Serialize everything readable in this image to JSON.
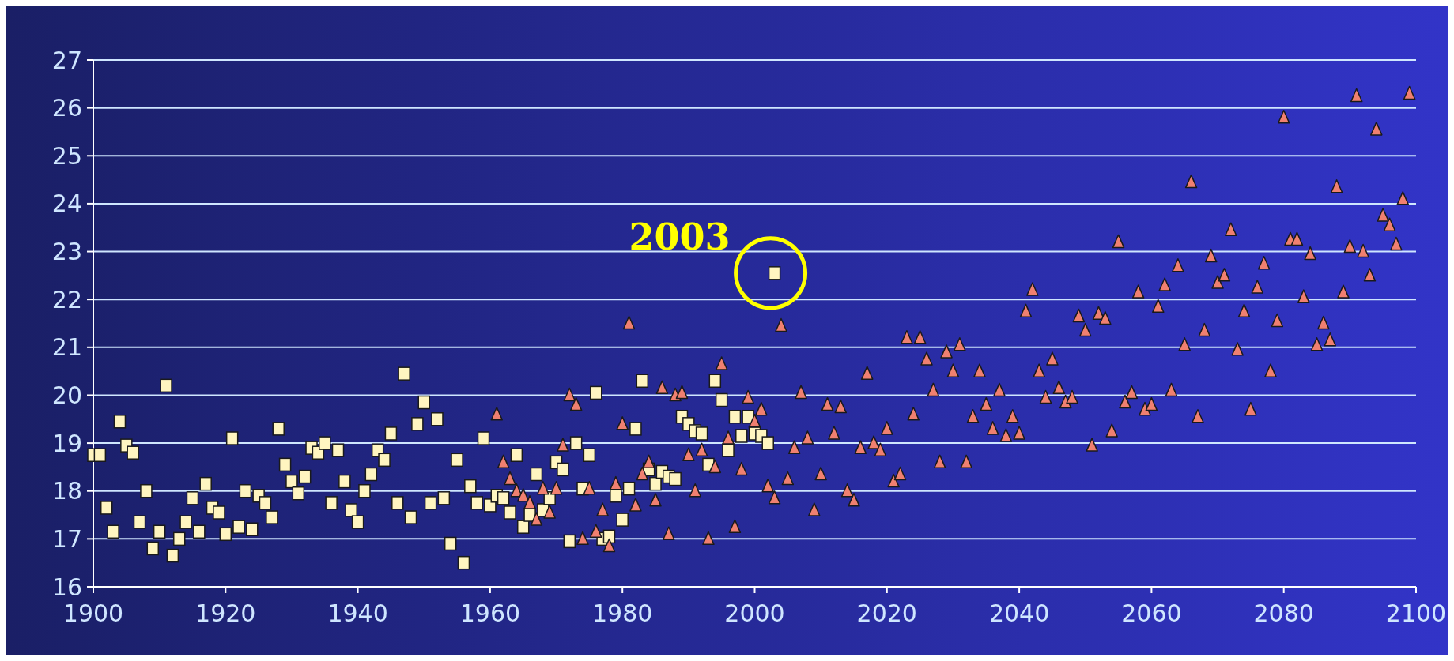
{
  "chart_data": {
    "type": "scatter",
    "xlim": [
      1900,
      2100
    ],
    "xticks": [
      1900,
      1920,
      1940,
      1960,
      1980,
      2000,
      2020,
      2040,
      2060,
      2080,
      2100
    ],
    "ylim": [
      16,
      27
    ],
    "yticks": [
      16,
      17,
      18,
      19,
      20,
      21,
      22,
      23,
      24,
      25,
      26,
      27
    ],
    "grid": "y",
    "annotations": [
      {
        "text": "2003",
        "x": 2003,
        "y": 22.55
      }
    ],
    "series": [
      {
        "color": "#fff5c0",
        "marker": "square",
        "x": [
          1900,
          1901,
          1902,
          1903,
          1904,
          1905,
          1906,
          1907,
          1908,
          1909,
          1910,
          1911,
          1912,
          1913,
          1914,
          1915,
          1916,
          1917,
          1918,
          1919,
          1920,
          1921,
          1922,
          1923,
          1924,
          1925,
          1926,
          1927,
          1928,
          1929,
          1930,
          1931,
          1932,
          1933,
          1934,
          1935,
          1936,
          1937,
          1938,
          1939,
          1940,
          1941,
          1942,
          1943,
          1944,
          1945,
          1946,
          1947,
          1948,
          1949,
          1950,
          1951,
          1952,
          1953,
          1954,
          1955,
          1956,
          1957,
          1958,
          1959,
          1960,
          1961,
          1962,
          1963,
          1964,
          1965,
          1966,
          1967,
          1968,
          1969,
          1970,
          1971,
          1972,
          1973,
          1974,
          1975,
          1976,
          1977,
          1978,
          1979,
          1980,
          1981,
          1982,
          1983,
          1984,
          1985,
          1986,
          1987,
          1988,
          1989,
          1990,
          1991,
          1992,
          1993,
          1994,
          1995,
          1996,
          1997,
          1998,
          1999,
          2000,
          2001,
          2002,
          2003
        ],
        "values": [
          18.75,
          18.75,
          17.65,
          17.15,
          19.45,
          18.95,
          18.8,
          17.35,
          18.0,
          16.8,
          17.15,
          20.2,
          16.65,
          17.0,
          17.35,
          17.85,
          17.15,
          18.15,
          17.65,
          17.55,
          17.1,
          19.1,
          17.25,
          18.0,
          17.2,
          17.9,
          17.75,
          17.45,
          19.3,
          18.55,
          18.2,
          17.95,
          18.3,
          18.9,
          18.8,
          19.0,
          17.75,
          18.85,
          18.2,
          17.6,
          17.35,
          18.0,
          18.35,
          18.85,
          18.65,
          19.2,
          17.75,
          20.45,
          17.45,
          19.4,
          19.85,
          17.75,
          19.5,
          17.85,
          16.9,
          18.65,
          16.5,
          18.1,
          17.75,
          19.1,
          17.7,
          17.9,
          17.85,
          17.55,
          18.75,
          17.25,
          17.5,
          18.35,
          17.6,
          17.85,
          18.6,
          18.45,
          16.95,
          19.0,
          18.05,
          18.75,
          20.05,
          17.0,
          17.05,
          17.9,
          17.4,
          18.05,
          19.3,
          20.3,
          18.45,
          18.15,
          18.4,
          18.3,
          18.25,
          19.55,
          19.4,
          19.25,
          19.2,
          18.55,
          20.3,
          19.9,
          18.85,
          19.55,
          19.15,
          19.55,
          19.2,
          19.15,
          19.0,
          22.55
        ]
      },
      {
        "color": "#f08070",
        "marker": "triangle",
        "x": [
          1961,
          1962,
          1963,
          1964,
          1965,
          1966,
          1967,
          1968,
          1969,
          1970,
          1971,
          1972,
          1973,
          1974,
          1975,
          1976,
          1977,
          1978,
          1979,
          1980,
          1981,
          1982,
          1983,
          1984,
          1985,
          1986,
          1987,
          1988,
          1989,
          1990,
          1991,
          1992,
          1993,
          1994,
          1995,
          1996,
          1997,
          1998,
          1999,
          2000,
          2001,
          2002,
          2003,
          2004,
          2005,
          2006,
          2007,
          2008,
          2009,
          2010,
          2011,
          2012,
          2013,
          2014,
          2015,
          2016,
          2017,
          2018,
          2019,
          2020,
          2021,
          2022,
          2023,
          2024,
          2025,
          2026,
          2027,
          2028,
          2029,
          2030,
          2031,
          2032,
          2033,
          2034,
          2035,
          2036,
          2037,
          2038,
          2039,
          2040,
          2041,
          2042,
          2043,
          2044,
          2045,
          2046,
          2047,
          2048,
          2049,
          2050,
          2051,
          2052,
          2053,
          2054,
          2055,
          2056,
          2057,
          2058,
          2059,
          2060,
          2061,
          2062,
          2063,
          2064,
          2065,
          2066,
          2067,
          2068,
          2069,
          2070,
          2071,
          2072,
          2073,
          2074,
          2075,
          2076,
          2077,
          2078,
          2079,
          2080,
          2081,
          2082,
          2083,
          2084,
          2085,
          2086,
          2087,
          2088,
          2089,
          2090,
          2091,
          2092,
          2093,
          2094,
          2095,
          2096,
          2097,
          2098,
          2099
        ],
        "values": [
          19.6,
          18.6,
          18.25,
          18.0,
          17.9,
          17.75,
          17.4,
          18.05,
          17.55,
          18.05,
          18.95,
          20.0,
          19.8,
          17.0,
          18.05,
          17.15,
          17.6,
          16.85,
          18.15,
          19.4,
          21.5,
          17.7,
          18.35,
          18.6,
          17.8,
          20.15,
          17.1,
          20.0,
          20.05,
          18.75,
          18.0,
          18.85,
          17.0,
          18.5,
          20.65,
          19.1,
          17.25,
          18.45,
          19.95,
          19.45,
          19.7,
          18.1,
          17.85,
          21.45,
          18.25,
          18.9,
          20.05,
          19.1,
          17.6,
          18.35,
          19.8,
          19.2,
          19.75,
          18.0,
          17.8,
          18.9,
          20.45,
          19.0,
          18.85,
          19.3,
          18.2,
          18.35,
          21.2,
          19.6,
          21.2,
          20.75,
          20.1,
          18.6,
          20.9,
          20.5,
          21.05,
          18.6,
          19.55,
          20.5,
          19.8,
          19.3,
          20.1,
          19.15,
          19.55,
          19.2,
          21.75,
          22.2,
          20.5,
          19.95,
          20.75,
          20.15,
          19.85,
          19.95,
          21.65,
          21.35,
          18.95,
          21.7,
          21.6,
          19.25,
          23.2,
          19.85,
          20.05,
          22.15,
          19.7,
          19.8,
          21.85,
          22.3,
          20.1,
          22.7,
          21.05,
          24.45,
          19.55,
          21.35,
          22.9,
          22.35,
          22.5,
          23.45,
          20.95,
          21.75,
          19.7,
          22.25,
          22.75,
          20.5,
          21.55,
          25.8,
          23.25,
          23.25,
          22.05,
          22.95,
          21.05,
          21.5,
          21.15,
          24.35,
          22.15,
          23.1,
          26.25,
          23.0,
          22.5,
          25.55,
          23.75,
          23.55,
          23.15,
          24.1,
          26.3
        ]
      }
    ]
  }
}
